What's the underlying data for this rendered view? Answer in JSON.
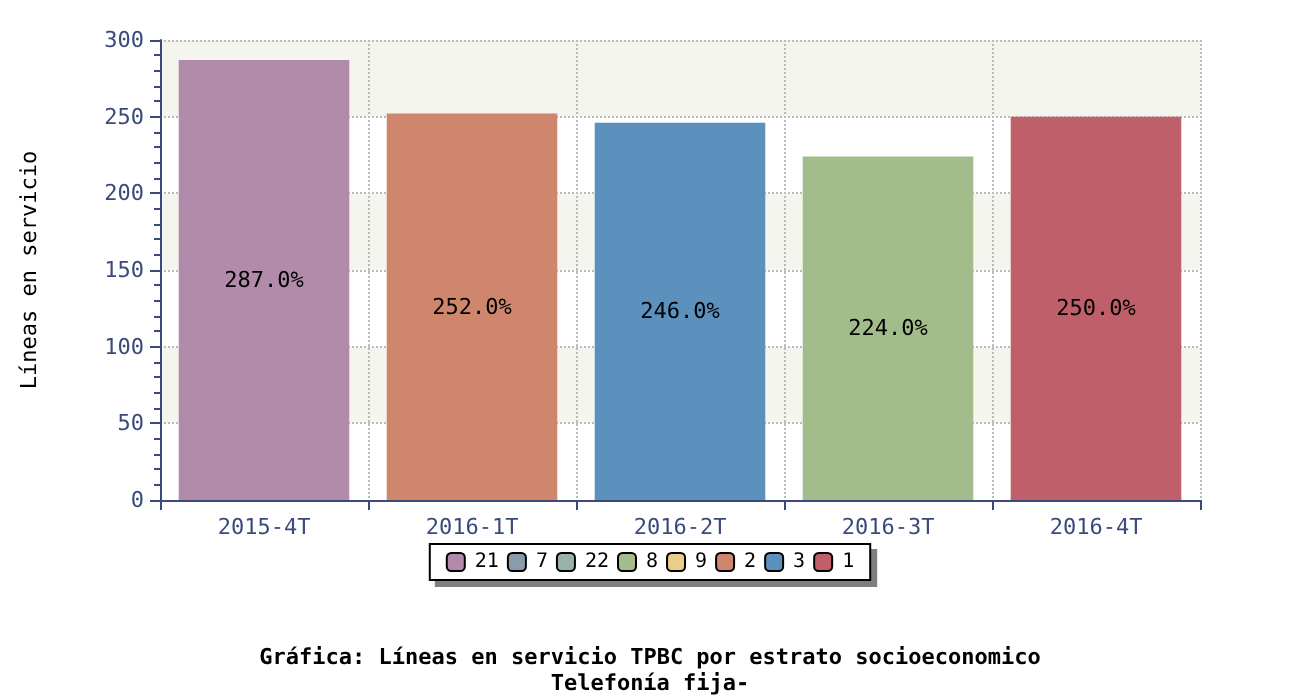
{
  "chart_data": {
    "type": "bar",
    "title": "Gráfica: Líneas en servicio TPBC por estrato socioeconomico",
    "subtitle": "Telefonía fija-",
    "ylabel": "Líneas en servicio",
    "categories": [
      "2015-4T",
      "2016-1T",
      "2016-2T",
      "2016-3T",
      "2016-4T"
    ],
    "stacked": true,
    "series": [
      {
        "name": "21",
        "color": "#b28bab",
        "values": [
          287,
          null,
          null,
          null,
          null
        ],
        "value_labels": [
          "287.0%",
          null,
          null,
          null,
          null
        ]
      },
      {
        "name": "7",
        "color": "#8c9bab",
        "values": [
          null,
          null,
          null,
          null,
          null
        ]
      },
      {
        "name": "22",
        "color": "#99b3ab",
        "values": [
          null,
          null,
          null,
          null,
          null
        ]
      },
      {
        "name": "8",
        "color": "#a3bc8b",
        "values": [
          null,
          null,
          null,
          224,
          null
        ],
        "value_labels": [
          null,
          null,
          null,
          "224.0%",
          null
        ]
      },
      {
        "name": "9",
        "color": "#ebcd8b",
        "values": [
          null,
          null,
          null,
          null,
          null
        ]
      },
      {
        "name": "2",
        "color": "#cf866c",
        "values": [
          null,
          252,
          null,
          null,
          null
        ],
        "value_labels": [
          null,
          "252.0%",
          null,
          null,
          null
        ]
      },
      {
        "name": "3",
        "color": "#5c91be",
        "values": [
          null,
          null,
          246,
          null,
          null
        ],
        "value_labels": [
          null,
          null,
          "246.0%",
          null,
          null
        ]
      },
      {
        "name": "1",
        "color": "#be5f69",
        "values": [
          null,
          null,
          null,
          null,
          250
        ],
        "value_labels": [
          null,
          null,
          null,
          null,
          "250.0%"
        ]
      }
    ],
    "ylim": [
      0,
      300
    ],
    "yticks": [
      0,
      50,
      100,
      150,
      200,
      250,
      300
    ],
    "grid": true,
    "legend": "bottom"
  }
}
